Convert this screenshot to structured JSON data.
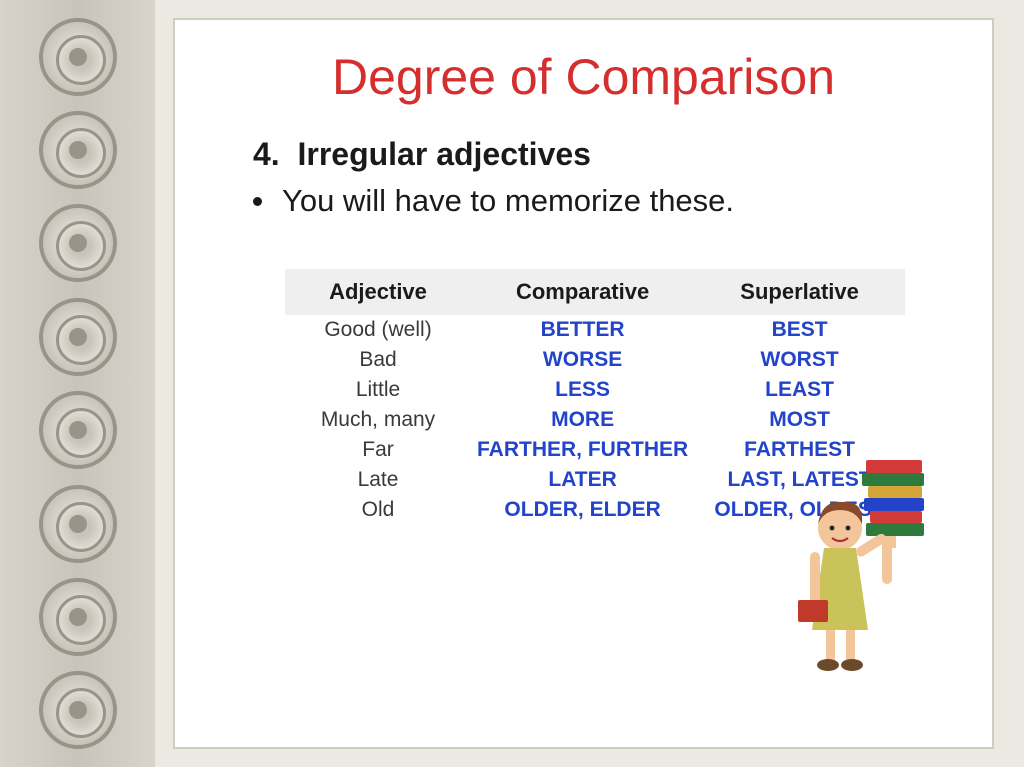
{
  "title": "Degree of Comparison",
  "section_number": "4.",
  "subtitle": "Irregular adjectives",
  "note": "You will have to memorize these.",
  "table": {
    "headers": [
      "Adjective",
      "Comparative",
      "Superlative"
    ],
    "rows": [
      {
        "adj": "Good (well)",
        "comp": "BETTER",
        "sup": "BEST"
      },
      {
        "adj": "Bad",
        "comp": "WORSE",
        "sup": "WORST"
      },
      {
        "adj": "Little",
        "comp": "LESS",
        "sup": "LEAST"
      },
      {
        "adj": "Much, many",
        "comp": "MORE",
        "sup": "MOST"
      },
      {
        "adj": "Far",
        "comp": "FARTHER, FURTHER",
        "sup": "FARTHEST"
      },
      {
        "adj": "Late",
        "comp": "LATER",
        "sup": "LAST, LATEST"
      },
      {
        "adj": "Old",
        "comp": "OLDER, ELDER",
        "sup": "OLDER, OLDEST"
      }
    ]
  },
  "colors": {
    "title": "#d42e2e",
    "comparative_text": "#2344c9",
    "header_bg": "#efefef",
    "slide_bg": "#ffffff",
    "page_bg": "#ece9e2"
  },
  "ornament_count": 8,
  "illustration": {
    "description": "child-holding-book-stack",
    "book_colors": [
      "#d43a3a",
      "#2e7a3c",
      "#d4a63a",
      "#2344c9",
      "#d43a3a",
      "#2e7a3c"
    ],
    "shirt_color": "#c9c35a",
    "hair_color": "#8a4a2a",
    "skin_color": "#f2c69a"
  }
}
